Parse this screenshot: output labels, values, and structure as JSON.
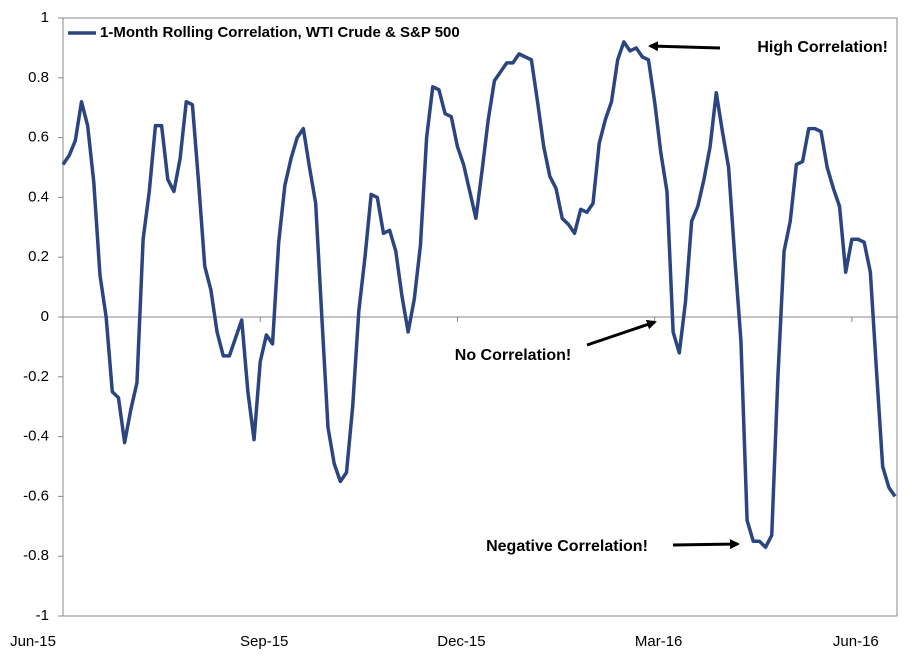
{
  "chart_data": {
    "type": "line",
    "legend_loc": "upper left",
    "annotations": [
      "High Correlation!",
      "No Correlation!",
      "Negative Correlation!"
    ],
    "categories": [
      "Jun-15",
      null,
      null,
      null,
      null,
      null,
      null,
      null,
      null,
      null,
      null,
      null,
      null,
      null,
      null,
      null,
      null,
      null,
      null,
      null,
      null,
      null,
      null,
      null,
      null,
      null,
      null,
      null,
      null,
      null,
      null,
      null,
      "Sep-15",
      null,
      null,
      null,
      null,
      null,
      null,
      null,
      null,
      null,
      null,
      null,
      null,
      null,
      null,
      null,
      null,
      null,
      null,
      null,
      null,
      null,
      null,
      null,
      null,
      null,
      null,
      null,
      null,
      null,
      null,
      null,
      "Dec-15",
      null,
      null,
      null,
      null,
      null,
      null,
      null,
      null,
      null,
      null,
      null,
      null,
      null,
      null,
      null,
      null,
      null,
      null,
      null,
      null,
      null,
      null,
      null,
      null,
      null,
      null,
      null,
      null,
      null,
      null,
      null,
      "Mar-16",
      null,
      null,
      null,
      null,
      null,
      null,
      null,
      null,
      null,
      null,
      null,
      null,
      null,
      null,
      null,
      null,
      null,
      null,
      null,
      null,
      null,
      null,
      null,
      null,
      null,
      null,
      null,
      null,
      null,
      null,
      null,
      "Jun-16",
      null,
      null,
      null,
      null,
      null,
      null,
      null
    ],
    "series": [
      {
        "name": "1-Month Rolling Correlation, WTI Crude & S&P 500",
        "color": "#2b4580",
        "values": [
          0.51,
          0.54,
          0.59,
          0.72,
          0.64,
          0.45,
          0.14,
          0.0,
          -0.25,
          -0.27,
          -0.42,
          -0.31,
          -0.22,
          0.26,
          0.42,
          0.64,
          0.64,
          0.46,
          0.42,
          0.53,
          0.72,
          0.71,
          0.45,
          0.17,
          0.09,
          -0.05,
          -0.13,
          -0.13,
          -0.07,
          -0.01,
          -0.25,
          -0.41,
          -0.15,
          -0.06,
          -0.09,
          0.25,
          0.44,
          0.53,
          0.6,
          0.63,
          0.5,
          0.38,
          0.0,
          -0.37,
          -0.49,
          -0.55,
          -0.52,
          -0.3,
          0.02,
          0.2,
          0.41,
          0.4,
          0.28,
          0.29,
          0.22,
          0.07,
          -0.05,
          0.06,
          0.24,
          0.6,
          0.77,
          0.76,
          0.68,
          0.67,
          0.57,
          0.51,
          0.42,
          0.33,
          0.49,
          0.66,
          0.79,
          0.82,
          0.85,
          0.85,
          0.88,
          0.87,
          0.86,
          0.72,
          0.57,
          0.47,
          0.43,
          0.33,
          0.31,
          0.28,
          0.36,
          0.35,
          0.38,
          0.58,
          0.66,
          0.72,
          0.86,
          0.92,
          0.89,
          0.9,
          0.87,
          0.86,
          0.72,
          0.55,
          0.42,
          -0.05,
          -0.12,
          0.05,
          0.32,
          0.37,
          0.46,
          0.57,
          0.75,
          0.62,
          0.5,
          0.2,
          -0.08,
          -0.68,
          -0.75,
          -0.75,
          -0.77,
          -0.73,
          -0.2,
          0.22,
          0.32,
          0.51,
          0.52,
          0.63,
          0.63,
          0.62,
          0.5,
          0.43,
          0.37,
          0.15,
          0.26,
          0.26,
          0.25,
          0.15,
          -0.18,
          -0.5,
          -0.57,
          -0.6
        ]
      }
    ],
    "ylim": [
      -1,
      1
    ],
    "yticks": [
      -1,
      -0.8,
      -0.6,
      -0.4,
      -0.2,
      0,
      0.2,
      0.4,
      0.6,
      0.8,
      1
    ],
    "grid": false
  }
}
